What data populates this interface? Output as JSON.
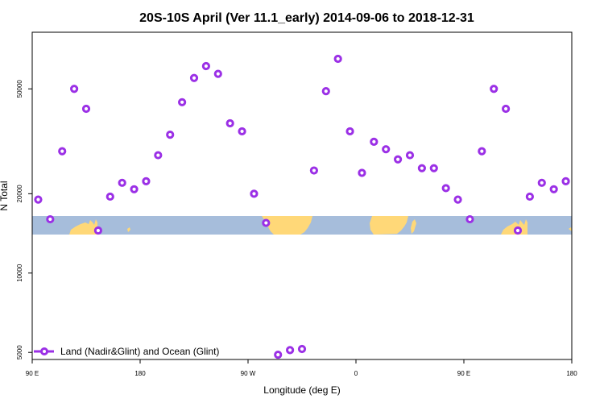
{
  "chart_data": {
    "type": "scatter",
    "title": "20S-10S April (Ver 11.1_early)   2014-09-06 to 2018-12-31",
    "xlabel": "Longitude (deg E)",
    "ylabel": "N Total",
    "xlim": [
      90,
      540
    ],
    "ylim": [
      4700,
      82000
    ],
    "y_scale": "log",
    "x_ticks": [
      {
        "value": 90,
        "label": "90 E"
      },
      {
        "value": 180,
        "label": "180"
      },
      {
        "value": 270,
        "label": "90 W"
      },
      {
        "value": 360,
        "label": "0"
      },
      {
        "value": 450,
        "label": "90 E"
      },
      {
        "value": 540,
        "label": "180"
      }
    ],
    "y_ticks": [
      {
        "value": 5000,
        "label": "5000"
      },
      {
        "value": 10000,
        "label": "10000"
      },
      {
        "value": 20000,
        "label": "20000"
      },
      {
        "value": 50000,
        "label": "50000"
      }
    ],
    "grid": false,
    "legend": {
      "position": "bottom-left",
      "entries": [
        {
          "label": "Land (Nadir&Glint) and Ocean (Glint)",
          "color": "#9b30e6"
        }
      ]
    },
    "colors": {
      "marker": "#9b30e6",
      "ocean": "#a6bddb",
      "land": "#ffd878"
    },
    "series": [
      {
        "name": "Land (Nadir&Glint) and Ocean (Glint)",
        "x": [
          95,
          105,
          115,
          125,
          135,
          145,
          155,
          165,
          175,
          185,
          195,
          205,
          215,
          225,
          235,
          245,
          255,
          265,
          275,
          285,
          295,
          305,
          315,
          325,
          335,
          345,
          355,
          365,
          375,
          385,
          395,
          405,
          415,
          425,
          435,
          445,
          455,
          465,
          475,
          485,
          495,
          505,
          515,
          525,
          535
        ],
        "y": [
          19000,
          16000,
          29000,
          50000,
          42000,
          14500,
          19500,
          22000,
          20800,
          22300,
          28000,
          33500,
          44500,
          55000,
          61000,
          57000,
          37000,
          34500,
          20000,
          15500,
          4900,
          5100,
          5150,
          24500,
          49000,
          65000,
          34500,
          24000,
          31500,
          29500,
          27000,
          28000,
          25000,
          25000,
          21000,
          19000,
          16000,
          29000,
          50000,
          42000,
          14500,
          19500,
          22000,
          20800,
          22300
        ]
      }
    ]
  }
}
